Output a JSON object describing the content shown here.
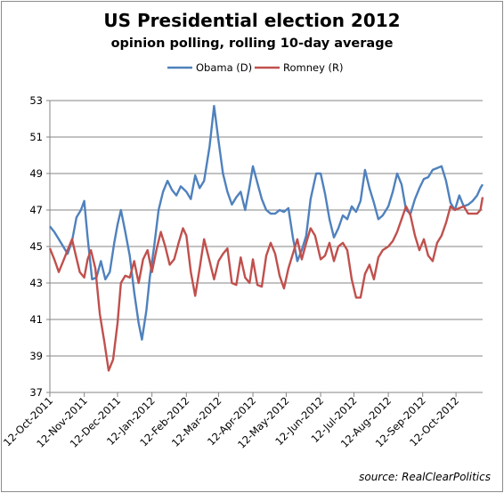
{
  "chart_data": {
    "type": "line",
    "title": "US Presidential election 2012",
    "subtitle": "opinion polling, rolling 10-day average",
    "xlabel": "",
    "ylabel": "",
    "ylim": [
      37,
      53
    ],
    "yticks": [
      37,
      39,
      41,
      43,
      45,
      47,
      49,
      51,
      53
    ],
    "grid": true,
    "legend": "top-center",
    "x_axis": {
      "start": "2011-10-12",
      "end": "2012-11-05",
      "tick_dates": [
        "2011-10-12",
        "2011-11-12",
        "2011-12-12",
        "2012-01-12",
        "2012-02-12",
        "2012-03-12",
        "2012-04-12",
        "2012-05-12",
        "2012-06-12",
        "2012-07-12",
        "2012-08-12",
        "2012-09-12",
        "2012-10-12"
      ],
      "tick_labels": [
        "12-Oct-2011",
        "12-Nov-2011",
        "12-Dec-2011",
        "12-Jan-2012",
        "12-Feb-2012",
        "12-Mar-2012",
        "12-Apr-2012",
        "12-May-2012",
        "12-Jun-2012",
        "12-Jul-2012",
        "12-Aug-2012",
        "12-Sep-2012",
        "12-Oct-2012"
      ]
    },
    "series": [
      {
        "name": "Obama (D)",
        "color": "#4f81bd",
        "points": [
          [
            "2011-10-12",
            46.1
          ],
          [
            "2011-10-16",
            45.8
          ],
          [
            "2011-10-20",
            45.4
          ],
          [
            "2011-10-24",
            45.0
          ],
          [
            "2011-10-28",
            44.6
          ],
          [
            "2011-11-01",
            45.3
          ],
          [
            "2011-11-05",
            46.6
          ],
          [
            "2011-11-09",
            47.0
          ],
          [
            "2011-11-12",
            47.5
          ],
          [
            "2011-11-15",
            45.5
          ],
          [
            "2011-11-19",
            43.2
          ],
          [
            "2011-11-23",
            43.3
          ],
          [
            "2011-11-27",
            44.2
          ],
          [
            "2011-12-01",
            43.2
          ],
          [
            "2011-12-05",
            43.6
          ],
          [
            "2011-12-09",
            45.2
          ],
          [
            "2011-12-12",
            46.2
          ],
          [
            "2011-12-15",
            47.0
          ],
          [
            "2011-12-19",
            45.8
          ],
          [
            "2011-12-23",
            44.5
          ],
          [
            "2011-12-27",
            42.5
          ],
          [
            "2011-12-31",
            40.8
          ],
          [
            "2012-01-03",
            39.9
          ],
          [
            "2012-01-07",
            41.5
          ],
          [
            "2012-01-10",
            43.3
          ],
          [
            "2012-01-14",
            45.0
          ],
          [
            "2012-01-18",
            47.0
          ],
          [
            "2012-01-22",
            48.0
          ],
          [
            "2012-01-26",
            48.6
          ],
          [
            "2012-01-30",
            48.1
          ],
          [
            "2012-02-03",
            47.8
          ],
          [
            "2012-02-07",
            48.3
          ],
          [
            "2012-02-12",
            48.0
          ],
          [
            "2012-02-16",
            47.6
          ],
          [
            "2012-02-20",
            48.9
          ],
          [
            "2012-02-24",
            48.2
          ],
          [
            "2012-02-28",
            48.6
          ],
          [
            "2012-03-04",
            50.5
          ],
          [
            "2012-03-08",
            52.7
          ],
          [
            "2012-03-12",
            50.8
          ],
          [
            "2012-03-16",
            49.0
          ],
          [
            "2012-03-20",
            48.0
          ],
          [
            "2012-03-24",
            47.3
          ],
          [
            "2012-03-28",
            47.7
          ],
          [
            "2012-04-01",
            48.0
          ],
          [
            "2012-04-05",
            47.0
          ],
          [
            "2012-04-09",
            48.3
          ],
          [
            "2012-04-12",
            49.4
          ],
          [
            "2012-04-16",
            48.5
          ],
          [
            "2012-04-20",
            47.6
          ],
          [
            "2012-04-24",
            47.0
          ],
          [
            "2012-04-28",
            46.8
          ],
          [
            "2012-05-02",
            46.8
          ],
          [
            "2012-05-06",
            47.0
          ],
          [
            "2012-05-10",
            46.9
          ],
          [
            "2012-05-14",
            47.1
          ],
          [
            "2012-05-18",
            45.5
          ],
          [
            "2012-05-22",
            44.2
          ],
          [
            "2012-05-26",
            44.8
          ],
          [
            "2012-05-30",
            45.6
          ],
          [
            "2012-06-03",
            47.6
          ],
          [
            "2012-06-08",
            49.0
          ],
          [
            "2012-06-12",
            49.0
          ],
          [
            "2012-06-16",
            47.9
          ],
          [
            "2012-06-20",
            46.5
          ],
          [
            "2012-06-24",
            45.5
          ],
          [
            "2012-06-28",
            46.0
          ],
          [
            "2012-07-02",
            46.7
          ],
          [
            "2012-07-06",
            46.5
          ],
          [
            "2012-07-10",
            47.2
          ],
          [
            "2012-07-14",
            46.9
          ],
          [
            "2012-07-18",
            47.5
          ],
          [
            "2012-07-22",
            49.2
          ],
          [
            "2012-07-26",
            48.2
          ],
          [
            "2012-07-30",
            47.4
          ],
          [
            "2012-08-03",
            46.5
          ],
          [
            "2012-08-07",
            46.7
          ],
          [
            "2012-08-12",
            47.2
          ],
          [
            "2012-08-16",
            48.0
          ],
          [
            "2012-08-20",
            49.0
          ],
          [
            "2012-08-24",
            48.4
          ],
          [
            "2012-08-28",
            47.0
          ],
          [
            "2012-09-01",
            46.8
          ],
          [
            "2012-09-05",
            47.6
          ],
          [
            "2012-09-09",
            48.2
          ],
          [
            "2012-09-13",
            48.7
          ],
          [
            "2012-09-17",
            48.8
          ],
          [
            "2012-09-21",
            49.2
          ],
          [
            "2012-09-25",
            49.3
          ],
          [
            "2012-09-29",
            49.4
          ],
          [
            "2012-10-03",
            48.6
          ],
          [
            "2012-10-07",
            47.4
          ],
          [
            "2012-10-11",
            47.0
          ],
          [
            "2012-10-15",
            47.8
          ],
          [
            "2012-10-19",
            47.2
          ],
          [
            "2012-10-23",
            47.3
          ],
          [
            "2012-10-27",
            47.5
          ],
          [
            "2012-10-31",
            47.8
          ],
          [
            "2012-11-03",
            48.2
          ],
          [
            "2012-11-05",
            48.4
          ]
        ]
      },
      {
        "name": "Romney (R)",
        "color": "#c0504d",
        "points": [
          [
            "2011-10-12",
            44.9
          ],
          [
            "2011-10-16",
            44.3
          ],
          [
            "2011-10-20",
            43.6
          ],
          [
            "2011-10-24",
            44.2
          ],
          [
            "2011-10-28",
            44.8
          ],
          [
            "2011-11-01",
            45.4
          ],
          [
            "2011-11-04",
            44.6
          ],
          [
            "2011-11-08",
            43.6
          ],
          [
            "2011-11-12",
            43.3
          ],
          [
            "2011-11-15",
            44.3
          ],
          [
            "2011-11-18",
            44.8
          ],
          [
            "2011-11-22",
            43.8
          ],
          [
            "2011-11-26",
            41.3
          ],
          [
            "2011-11-30",
            39.8
          ],
          [
            "2011-12-04",
            38.2
          ],
          [
            "2011-12-08",
            38.8
          ],
          [
            "2011-12-12",
            40.8
          ],
          [
            "2011-12-15",
            43.0
          ],
          [
            "2011-12-19",
            43.4
          ],
          [
            "2011-12-23",
            43.3
          ],
          [
            "2011-12-27",
            44.2
          ],
          [
            "2011-12-31",
            43.0
          ],
          [
            "2012-01-04",
            44.3
          ],
          [
            "2012-01-08",
            44.8
          ],
          [
            "2012-01-12",
            43.6
          ],
          [
            "2012-01-16",
            44.8
          ],
          [
            "2012-01-20",
            45.8
          ],
          [
            "2012-01-24",
            45.0
          ],
          [
            "2012-01-28",
            44.0
          ],
          [
            "2012-02-01",
            44.3
          ],
          [
            "2012-02-05",
            45.2
          ],
          [
            "2012-02-09",
            46.0
          ],
          [
            "2012-02-12",
            45.6
          ],
          [
            "2012-02-16",
            43.6
          ],
          [
            "2012-02-20",
            42.3
          ],
          [
            "2012-02-24",
            43.8
          ],
          [
            "2012-02-28",
            45.4
          ],
          [
            "2012-03-04",
            44.2
          ],
          [
            "2012-03-08",
            43.2
          ],
          [
            "2012-03-12",
            44.2
          ],
          [
            "2012-03-16",
            44.6
          ],
          [
            "2012-03-20",
            44.9
          ],
          [
            "2012-03-24",
            43.0
          ],
          [
            "2012-03-28",
            42.9
          ],
          [
            "2012-04-01",
            44.4
          ],
          [
            "2012-04-05",
            43.3
          ],
          [
            "2012-04-09",
            43.0
          ],
          [
            "2012-04-12",
            44.3
          ],
          [
            "2012-04-16",
            42.9
          ],
          [
            "2012-04-20",
            42.8
          ],
          [
            "2012-04-24",
            44.5
          ],
          [
            "2012-04-28",
            45.2
          ],
          [
            "2012-05-02",
            44.6
          ],
          [
            "2012-05-06",
            43.4
          ],
          [
            "2012-05-10",
            42.7
          ],
          [
            "2012-05-14",
            43.8
          ],
          [
            "2012-05-18",
            44.6
          ],
          [
            "2012-05-22",
            45.4
          ],
          [
            "2012-05-26",
            44.3
          ],
          [
            "2012-05-30",
            45.2
          ],
          [
            "2012-06-03",
            46.0
          ],
          [
            "2012-06-07",
            45.6
          ],
          [
            "2012-06-12",
            44.3
          ],
          [
            "2012-06-16",
            44.5
          ],
          [
            "2012-06-20",
            45.2
          ],
          [
            "2012-06-24",
            44.2
          ],
          [
            "2012-06-28",
            45.0
          ],
          [
            "2012-07-02",
            45.2
          ],
          [
            "2012-07-06",
            44.8
          ],
          [
            "2012-07-10",
            43.2
          ],
          [
            "2012-07-14",
            42.2
          ],
          [
            "2012-07-18",
            42.2
          ],
          [
            "2012-07-22",
            43.5
          ],
          [
            "2012-07-26",
            44.0
          ],
          [
            "2012-07-30",
            43.2
          ],
          [
            "2012-08-03",
            44.4
          ],
          [
            "2012-08-07",
            44.8
          ],
          [
            "2012-08-12",
            45.0
          ],
          [
            "2012-08-16",
            45.3
          ],
          [
            "2012-08-20",
            45.8
          ],
          [
            "2012-08-24",
            46.5
          ],
          [
            "2012-08-28",
            47.2
          ],
          [
            "2012-09-01",
            46.7
          ],
          [
            "2012-09-05",
            45.6
          ],
          [
            "2012-09-09",
            44.8
          ],
          [
            "2012-09-13",
            45.4
          ],
          [
            "2012-09-17",
            44.5
          ],
          [
            "2012-09-21",
            44.2
          ],
          [
            "2012-09-25",
            45.2
          ],
          [
            "2012-09-29",
            45.6
          ],
          [
            "2012-10-03",
            46.3
          ],
          [
            "2012-10-07",
            47.2
          ],
          [
            "2012-10-11",
            47.0
          ],
          [
            "2012-10-15",
            47.1
          ],
          [
            "2012-10-19",
            47.2
          ],
          [
            "2012-10-23",
            46.8
          ],
          [
            "2012-10-27",
            46.8
          ],
          [
            "2012-10-31",
            46.8
          ],
          [
            "2012-11-03",
            47.0
          ],
          [
            "2012-11-05",
            47.7
          ]
        ]
      }
    ],
    "source": "source: RealClearPolitics"
  }
}
